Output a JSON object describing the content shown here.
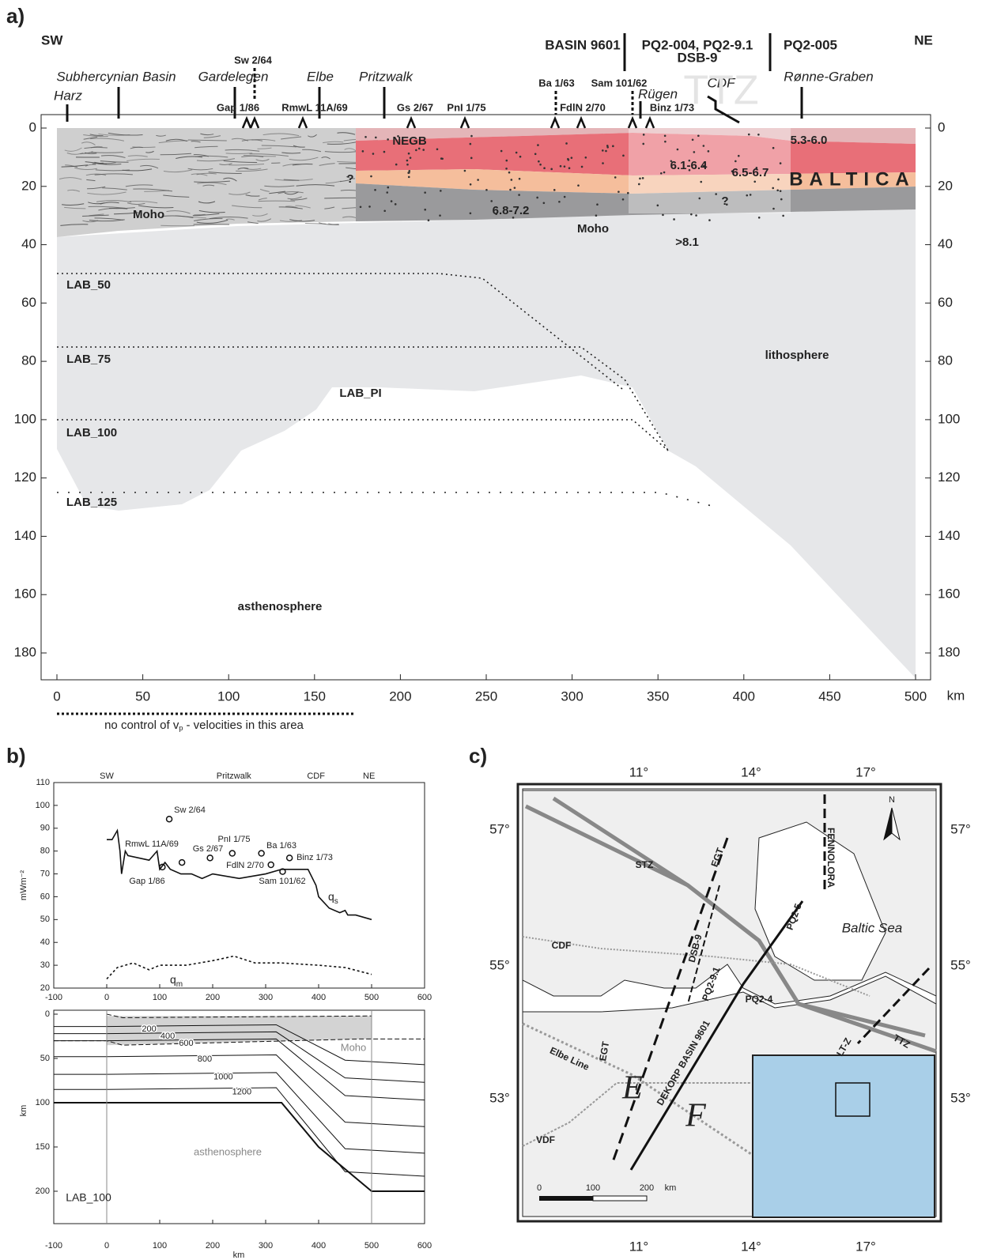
{
  "panel_a": {
    "label": "a)",
    "sw": "SW",
    "ne": "NE",
    "profiles": [
      "BASIN 9601",
      "PQ2-004, PQ2-9.1",
      "DSB-9",
      "PQ2-005"
    ],
    "places": [
      "Subhercynian Basin",
      "Harz",
      "Gardelegen",
      "Elbe",
      "Pritzwalk",
      "CDF",
      "Rügen",
      "Rønne-Graben"
    ],
    "ttz": "TTZ",
    "wells": [
      "Sw 2/64",
      "Gap 1/86",
      "RmwL 11A/69",
      "Gs 2/67",
      "PnI 1/75",
      "Ba 1/63",
      "FdlN 2/70",
      "Sam 101/62",
      "Binz 1/73"
    ],
    "section_labels": [
      "NEGB",
      "Moho",
      "6.8-7.2",
      "Moho",
      ">8.1",
      "6.1-6.4",
      "6.5-6.7",
      "5.3-6.0",
      "BALTICA",
      "?",
      "?"
    ],
    "lab_labels": [
      "LAB_50",
      "LAB_75",
      "LAB_PI",
      "LAB_100",
      "LAB_125"
    ],
    "lithosphere": "lithosphere",
    "asthenosphere": "asthenosphere",
    "xticks": [
      0,
      50,
      100,
      150,
      200,
      250,
      300,
      350,
      400,
      450,
      500
    ],
    "x_unit": "km",
    "yticks": [
      0,
      20,
      40,
      60,
      80,
      100,
      120,
      140,
      160,
      180
    ],
    "note": {
      "text": "no control of v",
      "subscript": "p",
      "rest": " - velocities in this area"
    }
  },
  "panel_b": {
    "label": "b)",
    "top_labels": [
      "SW",
      "Pritzwalk",
      "CDF",
      "NE"
    ],
    "xticks": [
      -100,
      0,
      100,
      200,
      300,
      400,
      500,
      600
    ],
    "yticks": [
      20,
      30,
      40,
      50,
      60,
      70,
      80,
      90,
      100,
      110
    ],
    "y_label": "mWm⁻²",
    "wells": [
      "Sw 2/64",
      "RmwL 11A/69",
      "PnI 1/75",
      "Gs 2/67",
      "Ba 1/63",
      "FdlN 2/70",
      "Binz 1/73",
      "Gap 1/86",
      "Sam 101/62"
    ],
    "q_s": {
      "main": "q",
      "sub": "s"
    },
    "q_m": {
      "main": "q",
      "sub": "m"
    },
    "depth_ticks": [
      0,
      50,
      100,
      150,
      200
    ],
    "depth_label": "km",
    "isotherms": [
      200,
      400,
      600,
      800,
      1000,
      1200
    ],
    "moho": "Moho",
    "asthenosphere": "asthenosphere",
    "lab": "LAB_100",
    "x_label": "km"
  },
  "panel_c": {
    "label": "c)",
    "lon_labels": [
      "11°",
      "14°",
      "17°"
    ],
    "lat_labels": [
      "57°",
      "55°",
      "53°"
    ],
    "names": [
      "STZ",
      "EGT",
      "FENNOLORA",
      "Baltic Sea",
      "CDF",
      "DSB-9",
      "PQ2-5",
      "PQ2-9.1",
      "PQ2-4",
      "EGT",
      "Elbe Line",
      "DEKORP BASIN 9601",
      "VDF",
      "LT-Z",
      "TTZ",
      "E",
      "F"
    ],
    "north": "N",
    "scale_ticks": [
      0,
      100,
      200
    ],
    "scale_unit": "km"
  }
}
